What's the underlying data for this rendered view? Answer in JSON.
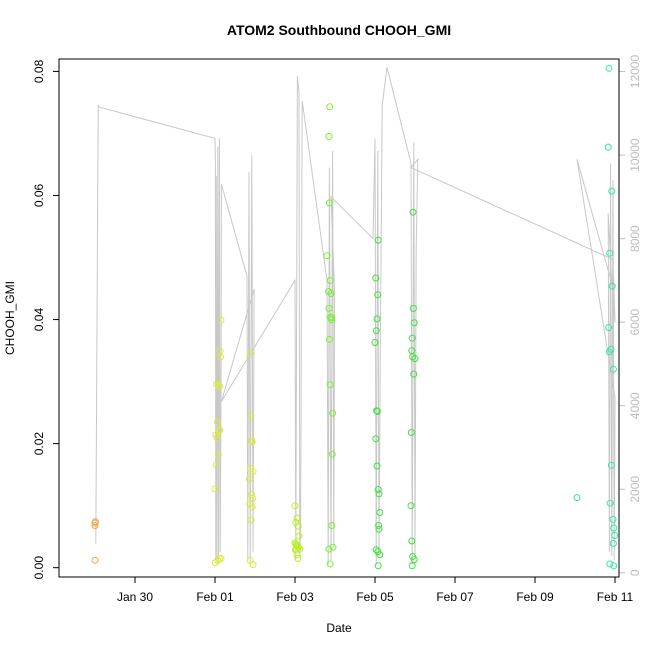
{
  "chart_data": {
    "type": "scatter",
    "title": "ATOM2 Southbound CHOOH_GMI",
    "xlabel": "Date",
    "ylabel": "CHOOH_GMI",
    "xlim_days": [
      -2.9,
      11.1
    ],
    "ylim": [
      -0.0015,
      0.082
    ],
    "y2lim": [
      -100,
      12300
    ],
    "x_ticks": [
      {
        "d": -1,
        "label": "Jan 30"
      },
      {
        "d": 1,
        "label": "Feb 01"
      },
      {
        "d": 3,
        "label": "Feb 03"
      },
      {
        "d": 5,
        "label": "Feb 05"
      },
      {
        "d": 7,
        "label": "Feb 07"
      },
      {
        "d": 9,
        "label": "Feb 09"
      },
      {
        "d": 11,
        "label": "Feb 11"
      }
    ],
    "y_ticks": [
      {
        "v": 0.0,
        "label": "0.00"
      },
      {
        "v": 0.02,
        "label": "0.02"
      },
      {
        "v": 0.04,
        "label": "0.04"
      },
      {
        "v": 0.06,
        "label": "0.06"
      },
      {
        "v": 0.08,
        "label": "0.08"
      }
    ],
    "y2_ticks": [
      {
        "v": 0,
        "label": "0"
      },
      {
        "v": 2000,
        "label": "2000"
      },
      {
        "v": 4000,
        "label": "4000"
      },
      {
        "v": 6000,
        "label": "6000"
      },
      {
        "v": 8000,
        "label": "8000"
      },
      {
        "v": 10000,
        "label": "10000"
      },
      {
        "v": 12000,
        "label": "12000"
      }
    ],
    "altitude_color": "#c8c8c8",
    "altitude_path": [
      [
        -1.98,
        700
      ],
      [
        -1.92,
        11200
      ],
      [
        -1.9,
        11150
      ],
      [
        1.0,
        10400
      ],
      [
        1.01,
        9800
      ],
      [
        1.02,
        300
      ],
      [
        1.03,
        9500
      ],
      [
        1.05,
        200
      ],
      [
        1.07,
        10200
      ],
      [
        1.09,
        300
      ],
      [
        1.11,
        10400
      ],
      [
        1.13,
        500
      ],
      [
        1.15,
        4200
      ],
      [
        1.16,
        9300
      ],
      [
        1.8,
        7100
      ],
      [
        1.82,
        300
      ],
      [
        1.85,
        9600
      ],
      [
        1.88,
        200
      ],
      [
        1.92,
        10000
      ],
      [
        1.95,
        500
      ],
      [
        1.98,
        6800
      ],
      [
        1.16,
        4100
      ],
      [
        3.0,
        7000
      ],
      [
        3.02,
        300
      ],
      [
        3.06,
        11900
      ],
      [
        3.1,
        11500
      ],
      [
        3.12,
        400
      ],
      [
        3.14,
        1100
      ],
      [
        3.18,
        11300
      ],
      [
        3.8,
        7000
      ],
      [
        3.83,
        200
      ],
      [
        3.86,
        9700
      ],
      [
        3.9,
        300
      ],
      [
        3.94,
        10100
      ],
      [
        3.97,
        600
      ],
      [
        3.99,
        6700
      ],
      [
        3.9,
        9000
      ],
      [
        4.95,
        8000
      ],
      [
        5.0,
        10400
      ],
      [
        5.03,
        200
      ],
      [
        5.07,
        10100
      ],
      [
        5.1,
        400
      ],
      [
        5.13,
        5000
      ],
      [
        5.18,
        11200
      ],
      [
        5.3,
        12100
      ],
      [
        5.9,
        9800
      ],
      [
        5.93,
        200
      ],
      [
        5.97,
        10300
      ],
      [
        6.0,
        400
      ],
      [
        6.03,
        7800
      ],
      [
        6.07,
        9900
      ],
      [
        5.9,
        9700
      ],
      [
        10.95,
        7500
      ],
      [
        11.0,
        6000
      ],
      [
        10.9,
        7300
      ],
      [
        10.83,
        8600
      ],
      [
        10.86,
        500
      ],
      [
        10.89,
        9800
      ],
      [
        10.92,
        400
      ],
      [
        10.95,
        9400
      ],
      [
        10.98,
        300
      ],
      [
        11.0,
        4200
      ],
      [
        10.05,
        9900
      ],
      [
        10.9,
        7000
      ]
    ],
    "series": [
      {
        "color": "#f5a24a",
        "points": [
          [
            -2.0,
            0.0072
          ],
          [
            -2.0,
            0.0068
          ],
          [
            -1.99,
            0.0074
          ],
          [
            -2.0,
            0.0012
          ]
        ]
      },
      {
        "color": "#dcec3a",
        "points": [
          [
            1.0,
            0.0127
          ],
          [
            1.02,
            0.0214
          ],
          [
            1.05,
            0.0209
          ],
          [
            1.03,
            0.0166
          ],
          [
            1.08,
            0.0182
          ],
          [
            1.1,
            0.0221
          ],
          [
            1.12,
            0.0222
          ],
          [
            1.06,
            0.0235
          ],
          [
            1.04,
            0.0296
          ],
          [
            1.09,
            0.0294
          ],
          [
            1.12,
            0.0292
          ],
          [
            1.14,
            0.034
          ],
          [
            1.13,
            0.0349
          ],
          [
            1.15,
            0.0399
          ],
          [
            1.01,
            0.0008
          ],
          [
            1.07,
            0.0012
          ],
          [
            1.11,
            0.0014
          ],
          [
            1.15,
            0.0015
          ],
          [
            1.88,
            0.0345
          ],
          [
            1.9,
            0.0245
          ],
          [
            1.92,
            0.0205
          ],
          [
            1.93,
            0.0203
          ],
          [
            1.89,
            0.016
          ],
          [
            1.95,
            0.0155
          ],
          [
            1.86,
            0.0143
          ],
          [
            1.91,
            0.0118
          ],
          [
            1.94,
            0.0112
          ],
          [
            1.87,
            0.0103
          ],
          [
            1.93,
            0.0098
          ],
          [
            1.9,
            0.0077
          ],
          [
            1.88,
            0.0012
          ],
          [
            1.95,
            0.0005
          ]
        ]
      },
      {
        "color": "#b8f020",
        "points": [
          [
            3.0,
            0.01
          ],
          [
            3.05,
            0.008
          ],
          [
            3.02,
            0.0073
          ],
          [
            3.08,
            0.0067
          ],
          [
            3.1,
            0.0051
          ],
          [
            3.0,
            0.004
          ],
          [
            3.02,
            0.0038
          ],
          [
            3.04,
            0.0036
          ],
          [
            3.06,
            0.0035
          ],
          [
            3.08,
            0.0033
          ],
          [
            3.01,
            0.0029
          ],
          [
            3.03,
            0.003
          ],
          [
            3.12,
            0.003
          ],
          [
            3.05,
            0.0021
          ],
          [
            3.07,
            0.0015
          ]
        ]
      },
      {
        "color": "#7af030",
        "points": [
          [
            3.87,
            0.0743
          ],
          [
            3.85,
            0.0695
          ],
          [
            3.86,
            0.0588
          ],
          [
            3.8,
            0.0503
          ],
          [
            3.88,
            0.0463
          ],
          [
            3.84,
            0.0445
          ],
          [
            3.9,
            0.0442
          ],
          [
            3.85,
            0.0418
          ],
          [
            3.89,
            0.0404
          ],
          [
            3.91,
            0.04
          ],
          [
            3.92,
            0.0403
          ],
          [
            3.86,
            0.0368
          ],
          [
            3.88,
            0.0295
          ],
          [
            3.94,
            0.0249
          ],
          [
            3.93,
            0.0183
          ],
          [
            3.92,
            0.0068
          ],
          [
            3.85,
            0.003
          ],
          [
            3.95,
            0.0033
          ],
          [
            3.88,
            0.0006
          ]
        ]
      },
      {
        "color": "#40e040",
        "points": [
          [
            5.0,
            0.0363
          ],
          [
            5.02,
            0.0467
          ],
          [
            5.05,
            0.0401
          ],
          [
            5.03,
            0.0382
          ],
          [
            5.08,
            0.0528
          ],
          [
            5.07,
            0.044
          ],
          [
            5.04,
            0.0253
          ],
          [
            5.06,
            0.0252
          ],
          [
            5.02,
            0.0208
          ],
          [
            5.05,
            0.0164
          ],
          [
            5.08,
            0.0126
          ],
          [
            5.1,
            0.0119
          ],
          [
            5.12,
            0.0089
          ],
          [
            5.09,
            0.0068
          ],
          [
            5.1,
            0.0062
          ],
          [
            5.03,
            0.0029
          ],
          [
            5.07,
            0.0026
          ],
          [
            5.12,
            0.0021
          ],
          [
            5.08,
            0.0003
          ],
          [
            5.95,
            0.0573
          ],
          [
            5.96,
            0.0418
          ],
          [
            5.98,
            0.0395
          ],
          [
            5.93,
            0.037
          ],
          [
            5.92,
            0.035
          ],
          [
            5.94,
            0.034
          ],
          [
            6.0,
            0.0337
          ],
          [
            5.97,
            0.0312
          ],
          [
            5.91,
            0.0218
          ],
          [
            5.9,
            0.01
          ],
          [
            5.92,
            0.0043
          ],
          [
            5.94,
            0.0018
          ],
          [
            5.98,
            0.0013
          ],
          [
            5.93,
            0.0003
          ]
        ]
      },
      {
        "color": "#33e8a0",
        "points": [
          [
            10.05,
            0.0113
          ],
          [
            10.85,
            0.0805
          ],
          [
            10.83,
            0.0678
          ],
          [
            10.92,
            0.0607
          ],
          [
            10.87,
            0.0507
          ],
          [
            10.93,
            0.0454
          ],
          [
            10.84,
            0.0387
          ],
          [
            10.9,
            0.0352
          ],
          [
            10.86,
            0.0348
          ],
          [
            10.96,
            0.032
          ],
          [
            10.91,
            0.0165
          ],
          [
            10.88,
            0.0104
          ],
          [
            10.95,
            0.0078
          ],
          [
            10.97,
            0.0064
          ],
          [
            10.99,
            0.0052
          ],
          [
            10.96,
            0.0039
          ],
          [
            10.87,
            0.0006
          ],
          [
            10.97,
            0.0003
          ]
        ]
      }
    ]
  }
}
